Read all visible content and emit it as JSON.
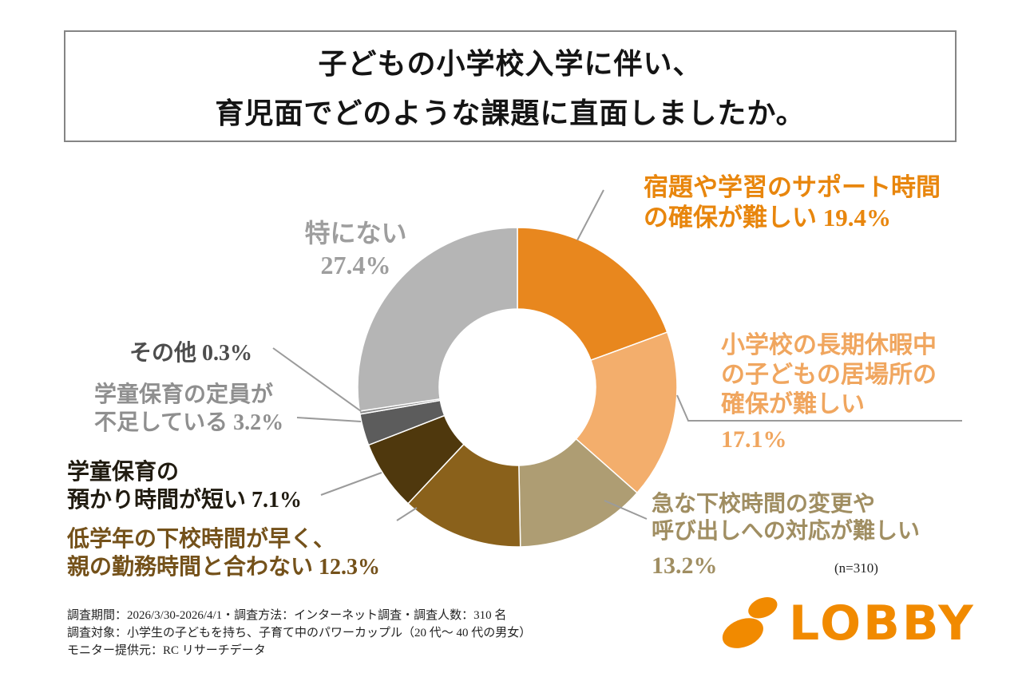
{
  "title": {
    "line1": "子どもの小学校入学に伴い、",
    "line2": "育児面でどのような課題に直面しましたか。"
  },
  "chart_data": {
    "type": "pie",
    "subtype": "donut",
    "start_angle_deg": 0,
    "direction": "clockwise",
    "sample_note": "(n=310)",
    "segments": [
      {
        "label": "宿題や学習のサポート時間の確保が難しい",
        "value": 19.4,
        "color": "#E8871E"
      },
      {
        "label": "小学校の長期休暇中の子どもの居場所の確保が難しい",
        "value": 17.1,
        "color": "#F3AE6C"
      },
      {
        "label": "急な下校時間の変更や呼び出しへの対応が難しい",
        "value": 13.2,
        "color": "#AE9D73"
      },
      {
        "label": "低学年の下校時間が早く、親の勤務時間と合わない",
        "value": 12.3,
        "color": "#8A611B"
      },
      {
        "label": "学童保育の預かり時間が短い",
        "value": 7.1,
        "color": "#4F380D"
      },
      {
        "label": "学童保育の定員が不足している",
        "value": 3.2,
        "color": "#5C5C5C"
      },
      {
        "label": "その他",
        "value": 0.3,
        "color": "#8A8A8A"
      },
      {
        "label": "特にない",
        "value": 27.4,
        "color": "#B5B5B5"
      }
    ]
  },
  "callouts": {
    "homework": {
      "line1": "宿題や学習のサポート時間",
      "line2": "の確保が難しい 19.4%",
      "color": "#E8860D"
    },
    "vacation": {
      "line1": "小学校の長期休暇中",
      "line2": "の子どもの居場所の",
      "line3": "確保が難しい",
      "pct": "17.1%",
      "color": "#F0A65F"
    },
    "sudden": {
      "line1": "急な下校時間の変更や",
      "line2": "呼び出しへの対応が難しい",
      "pct": "13.2%",
      "color": "#A08E62"
    },
    "none": {
      "line1": "特にない",
      "line2": "27.4%",
      "color": "#9E9E9E"
    },
    "other": {
      "line1": "その他 0.3%",
      "color": "#4D4D4D"
    },
    "capacity": {
      "line1": "学童保育の定員が",
      "line2": "不足している 3.2%",
      "color": "#8F8F8F"
    },
    "short_hours": {
      "line1": "学童保育の",
      "line2": "預かり時間が短い 7.1%",
      "color": "#201B10"
    },
    "early_dismissal": {
      "line1": "低学年の下校時間が早く、",
      "line2": "親の勤務時間と合わない 12.3%",
      "color": "#74511A"
    }
  },
  "sample_note": "(n=310)",
  "footer": {
    "line1": "調査期間：2026/3/30-2026/4/1・調査方法：インターネット調査・調査人数：310 名",
    "line2": "調査対象：小学生の子どもを持ち、子育て中のパワーカップル（20 代〜 40 代の男女）",
    "line3": "モニター提供元：RC リサーチデータ"
  },
  "logo": {
    "text": "LOBBY",
    "color": "#F18A00"
  }
}
